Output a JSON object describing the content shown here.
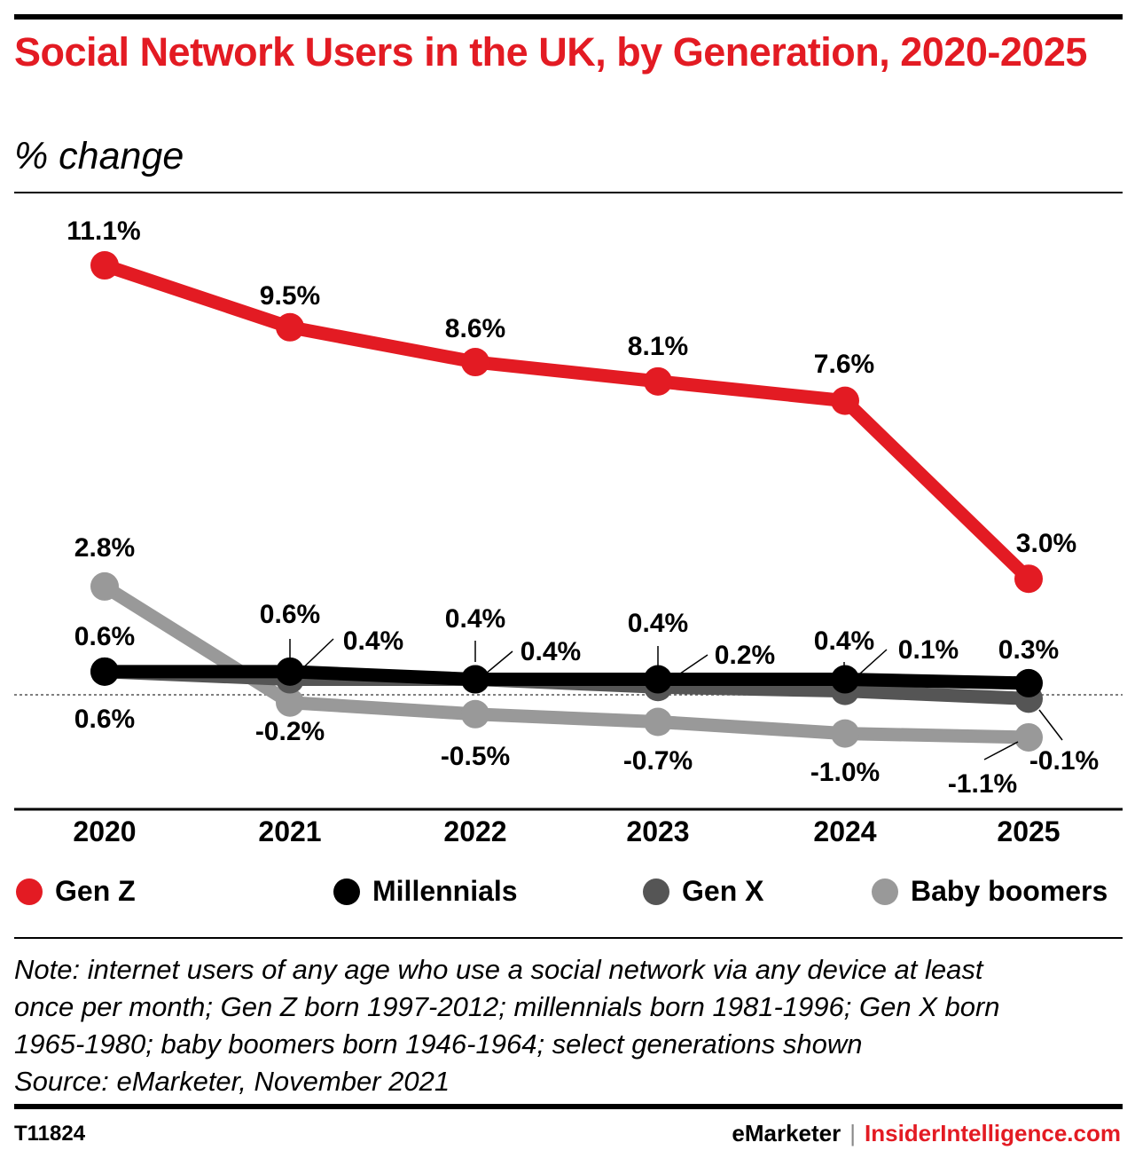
{
  "header": {
    "title": "Social Network Users in the UK, by Generation, 2020-2025",
    "subtitle": "% change"
  },
  "chart_data": {
    "type": "line",
    "categories": [
      "2020",
      "2021",
      "2022",
      "2023",
      "2024",
      "2025"
    ],
    "ylim": [
      -2,
      12
    ],
    "grid": false,
    "legend_position": "bottom",
    "series": [
      {
        "name": "Gen Z",
        "color": "#e31b23",
        "values": [
          11.1,
          9.5,
          8.6,
          8.1,
          7.6,
          3.0
        ],
        "labels": [
          "11.1%",
          "9.5%",
          "8.6%",
          "8.1%",
          "7.6%",
          "3.0%"
        ]
      },
      {
        "name": "Millennials",
        "color": "#000000",
        "values": [
          0.6,
          0.6,
          0.4,
          0.4,
          0.4,
          0.3
        ],
        "labels": [
          "0.6%",
          "0.6%",
          "0.4%",
          "0.4%",
          "0.4%",
          "0.3%"
        ]
      },
      {
        "name": "Gen X",
        "color": "#555555",
        "values": [
          0.6,
          0.4,
          0.4,
          0.2,
          0.1,
          -0.1
        ],
        "labels": [
          "0.6%",
          "0.4%",
          "0.4%",
          "0.2%",
          "0.1%",
          "-0.1%"
        ]
      },
      {
        "name": "Baby boomers",
        "color": "#999999",
        "values": [
          2.8,
          -0.2,
          -0.5,
          -0.7,
          -1.0,
          -1.1
        ],
        "labels": [
          "2.8%",
          "-0.2%",
          "-0.5%",
          "-0.7%",
          "-1.0%",
          "-1.1%"
        ]
      }
    ]
  },
  "note": {
    "lines": [
      "Note: internet users of any age who use a social network via any device at least",
      "once per month; Gen Z born 1997-2012; millennials born 1981-1996; Gen X born",
      "1965-1980; baby boomers born 1946-1964; select generations shown",
      "Source: eMarketer, November 2021"
    ]
  },
  "footer": {
    "chart_id": "T11824",
    "brand_primary": "eMarketer",
    "separator": "|",
    "brand_secondary": "InsiderIntelligence.com"
  }
}
